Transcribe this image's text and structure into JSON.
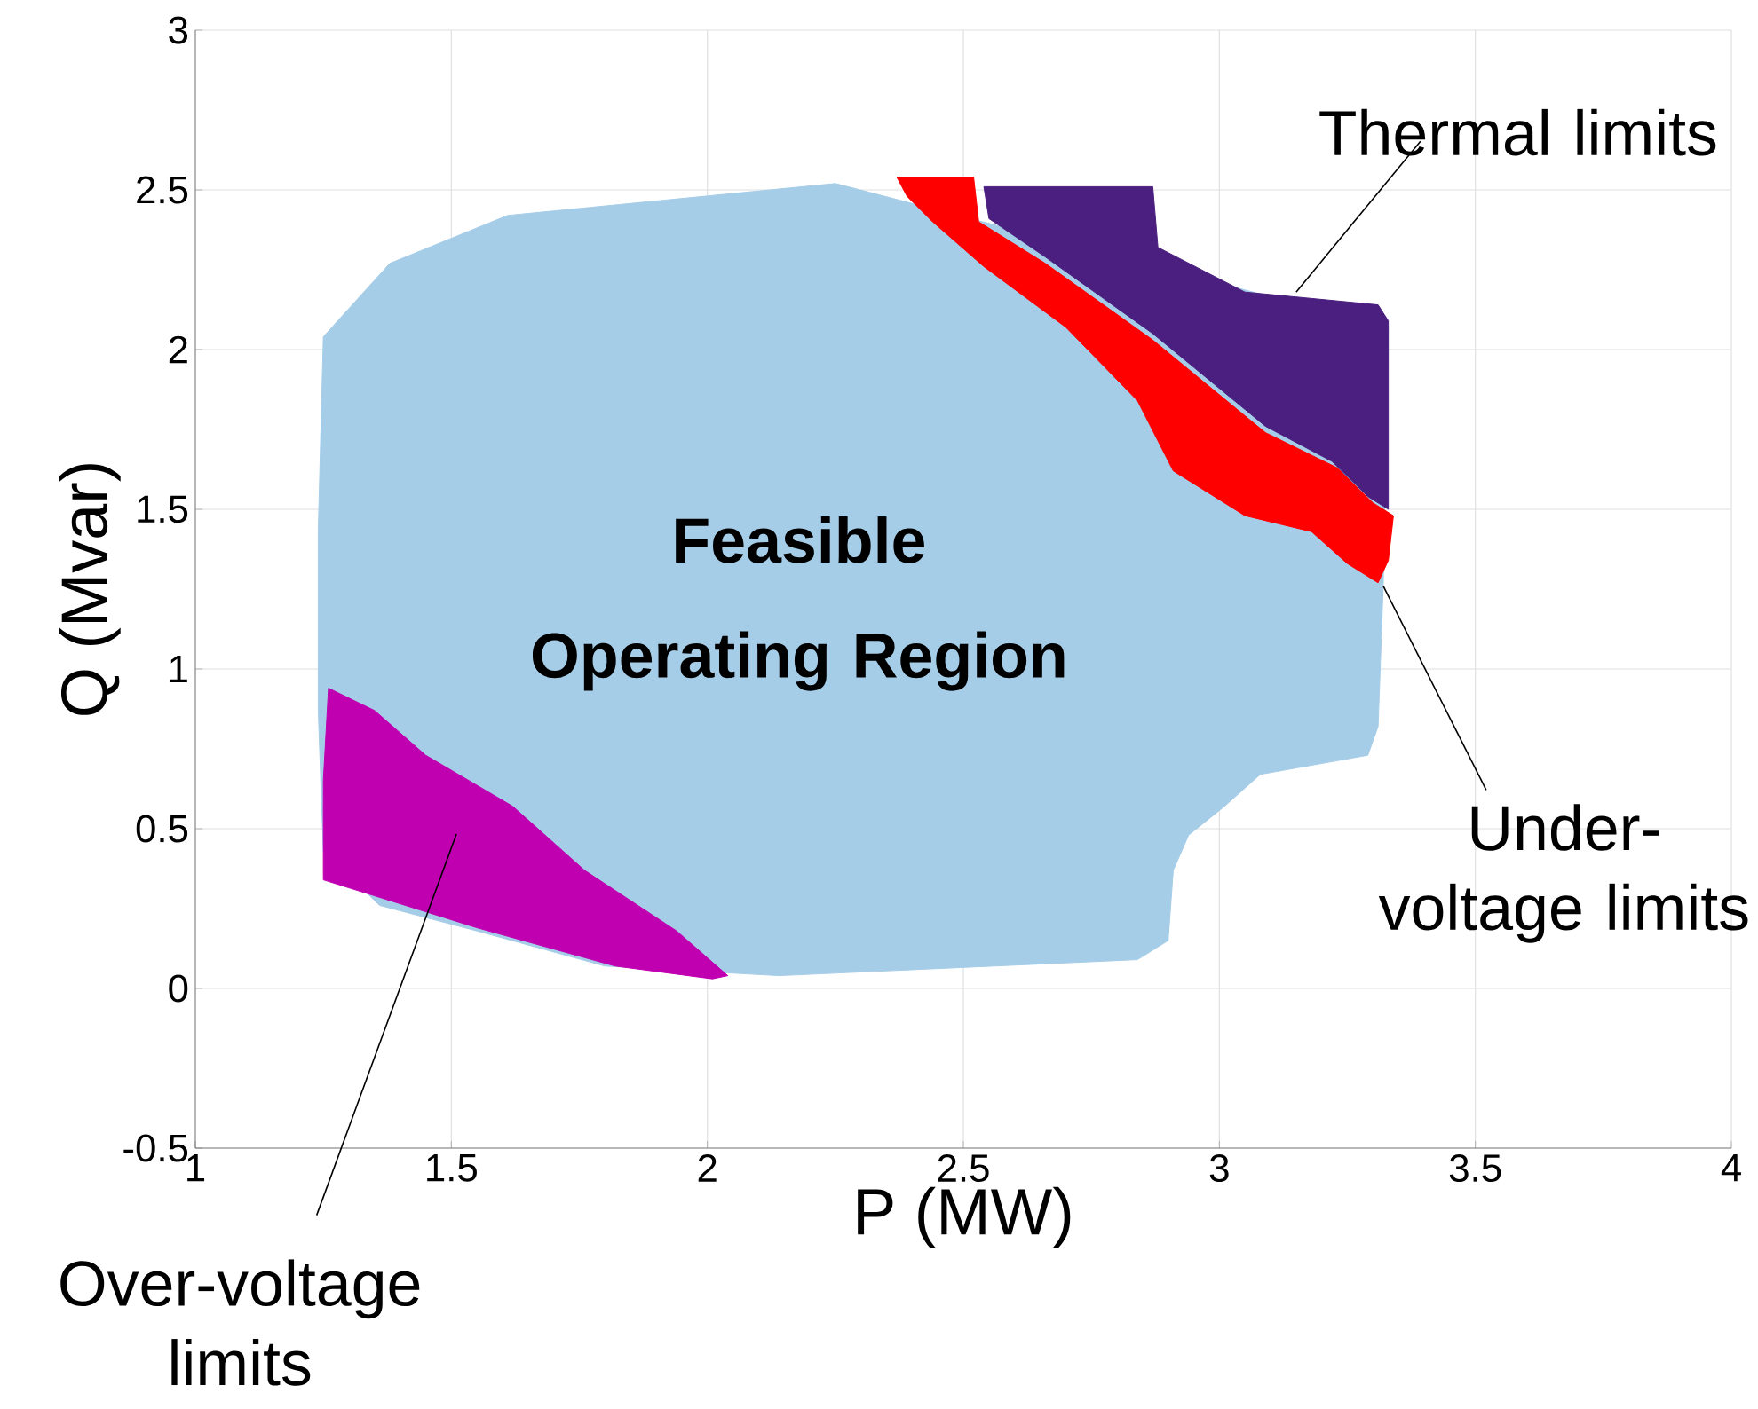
{
  "chart_data": {
    "type": "area",
    "xlabel": "P (MW)",
    "ylabel": "Q (Mvar)",
    "xlim": [
      1,
      4
    ],
    "ylim": [
      -0.5,
      3
    ],
    "xticks": [
      1,
      1.5,
      2,
      2.5,
      3,
      3.5,
      4
    ],
    "yticks": [
      -0.5,
      0,
      0.5,
      1,
      1.5,
      2,
      2.5,
      3
    ],
    "grid": true,
    "series": [
      {
        "color": "#a6cde8",
        "x": [
          1.25,
          1.38,
          1.61,
          2.25,
          3.33,
          3.32,
          3.31,
          3.29,
          3.08,
          3.01,
          2.94,
          2.91,
          2.9,
          2.84,
          2.56,
          2.14,
          1.8,
          1.55,
          1.36,
          1.25,
          1.24,
          1.24
        ],
        "values": [
          2.04,
          2.27,
          2.42,
          2.52,
          2.07,
          1.26,
          0.82,
          0.73,
          0.67,
          0.57,
          0.48,
          0.37,
          0.15,
          0.09,
          0.07,
          0.04,
          0.07,
          0.18,
          0.26,
          0.43,
          0.87,
          1.43
        ]
      },
      {
        "color": "#4b1f80",
        "x": [
          2.54,
          2.87,
          2.88,
          3.05,
          3.31,
          3.33,
          3.33,
          3.29,
          3.22,
          3.09,
          2.87,
          2.66,
          2.55
        ],
        "values": [
          2.51,
          2.51,
          2.32,
          2.18,
          2.14,
          2.09,
          1.5,
          1.54,
          1.65,
          1.76,
          2.05,
          2.29,
          2.41
        ]
      },
      {
        "color": "#ff0000",
        "x": [
          2.37,
          2.52,
          2.53,
          2.66,
          2.87,
          3.09,
          3.23,
          3.3,
          3.34,
          3.33,
          3.31,
          3.25,
          3.18,
          3.05,
          2.91,
          2.84,
          2.7,
          2.54,
          2.44,
          2.39
        ],
        "values": [
          2.54,
          2.54,
          2.4,
          2.27,
          2.03,
          1.74,
          1.63,
          1.52,
          1.48,
          1.34,
          1.27,
          1.33,
          1.43,
          1.48,
          1.62,
          1.84,
          2.07,
          2.26,
          2.4,
          2.48
        ]
      },
      {
        "color": "#c000b0",
        "x": [
          1.26,
          1.35,
          1.45,
          1.62,
          1.76,
          1.94,
          2.04,
          2.01,
          1.82,
          1.55,
          1.35,
          1.25,
          1.25
        ],
        "values": [
          0.94,
          0.87,
          0.73,
          0.57,
          0.37,
          0.18,
          0.04,
          0.03,
          0.07,
          0.19,
          0.29,
          0.34,
          0.65
        ]
      }
    ],
    "annotations": [
      "Feasible Operating Region",
      {
        "text": "Thermal limits",
        "x": 3.15,
        "y": 2.18
      },
      {
        "text": "Under-voltage limits",
        "x": 3.32,
        "y": 1.26
      },
      "Over-voltage limits"
    ]
  }
}
